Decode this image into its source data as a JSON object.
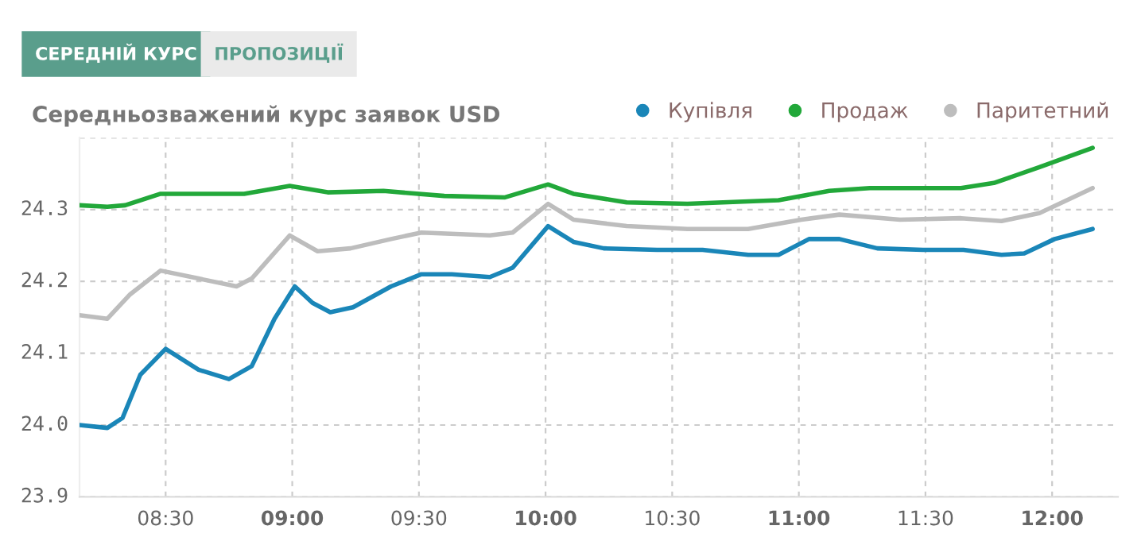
{
  "chart_data": {
    "type": "line",
    "title": "Середньозважений курс заявок USD",
    "annotations": [
      "СЕРЕДНІЙ КУРС",
      "ПРОПОЗИЦІЇ"
    ],
    "series": [
      {
        "name": "Купівля",
        "color": "#1a86b8",
        "x": [
          8.16,
          8.27,
          8.33,
          8.4,
          8.5,
          8.63,
          8.75,
          8.84,
          8.93,
          9.01,
          9.08,
          9.15,
          9.24,
          9.39,
          9.51,
          9.63,
          9.78,
          9.87,
          10.01,
          10.11,
          10.23,
          10.44,
          10.62,
          10.8,
          10.92,
          11.04,
          11.16,
          11.31,
          11.49,
          11.65,
          11.8,
          11.89,
          12.01,
          12.16
        ],
        "values": [
          24.0,
          23.996,
          24.01,
          24.07,
          24.106,
          24.077,
          24.064,
          24.082,
          24.148,
          24.193,
          24.17,
          24.157,
          24.164,
          24.193,
          24.21,
          24.21,
          24.206,
          24.219,
          24.277,
          24.255,
          24.246,
          24.244,
          24.244,
          24.237,
          24.237,
          24.259,
          24.259,
          24.246,
          24.244,
          24.244,
          24.237,
          24.239,
          24.259,
          24.273
        ]
      },
      {
        "name": "Продаж",
        "color": "#22a83a",
        "x": [
          8.16,
          8.27,
          8.34,
          8.48,
          8.63,
          8.81,
          8.99,
          9.14,
          9.36,
          9.6,
          9.84,
          10.01,
          10.11,
          10.32,
          10.56,
          10.92,
          11.12,
          11.28,
          11.64,
          11.77,
          11.95,
          12.16
        ],
        "values": [
          24.306,
          24.304,
          24.306,
          24.322,
          24.322,
          24.322,
          24.333,
          24.324,
          24.326,
          24.319,
          24.317,
          24.335,
          24.322,
          24.31,
          24.308,
          24.313,
          24.326,
          24.33,
          24.33,
          24.337,
          24.359,
          24.386
        ]
      },
      {
        "name": "Паритетний",
        "color": "#bdbdbd",
        "x": [
          8.16,
          8.27,
          8.36,
          8.48,
          8.63,
          8.78,
          8.84,
          8.99,
          9.1,
          9.23,
          9.39,
          9.51,
          9.78,
          9.87,
          10.01,
          10.11,
          10.32,
          10.56,
          10.8,
          11.01,
          11.16,
          11.4,
          11.64,
          11.8,
          11.95,
          12.16
        ],
        "values": [
          24.153,
          24.148,
          24.182,
          24.215,
          24.204,
          24.193,
          24.204,
          24.264,
          24.242,
          24.246,
          24.259,
          24.268,
          24.264,
          24.268,
          24.308,
          24.286,
          24.277,
          24.273,
          24.273,
          24.286,
          24.293,
          24.286,
          24.288,
          24.284,
          24.295,
          24.33
        ]
      }
    ],
    "xlim": [
      8.16,
      12.26
    ],
    "xticks": [
      {
        "value": 8.5,
        "label": "08:30"
      },
      {
        "value": 9,
        "label": "09:00"
      },
      {
        "value": 9.5,
        "label": "09:30"
      },
      {
        "value": 10,
        "label": "10:00"
      },
      {
        "value": 10.5,
        "label": "10:30"
      },
      {
        "value": 11,
        "label": "11:00"
      },
      {
        "value": 11.5,
        "label": "11:30"
      },
      {
        "value": 12,
        "label": "12:00"
      }
    ],
    "ylim": [
      23.9,
      24.4
    ],
    "yticks": [
      23.9,
      {
        "value": 24.0,
        "label": "24.0"
      },
      24.1,
      24.2,
      24.3,
      {
        "value": 24.4,
        "label": null
      }
    ],
    "grid": true,
    "legend": "top right",
    "line_style": "solid"
  }
}
